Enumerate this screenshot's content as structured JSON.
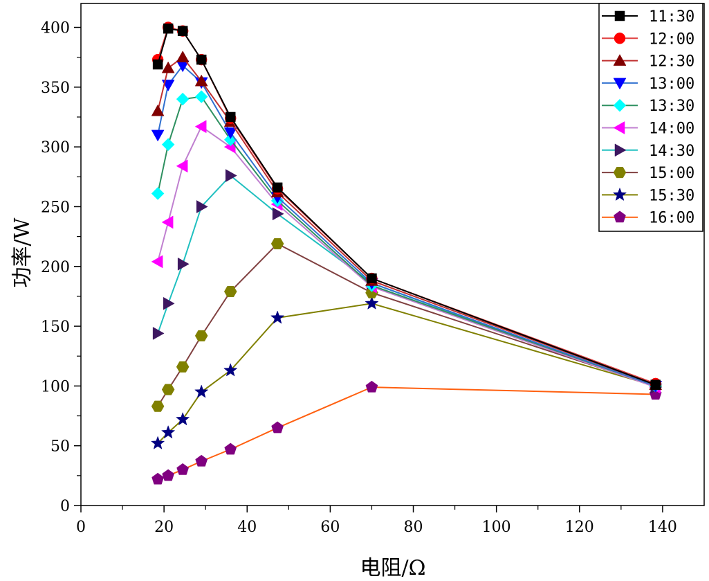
{
  "chart_data": {
    "type": "line",
    "xlabel": "电阻/Ω",
    "ylabel": "功率/W",
    "xlim": [
      0,
      150
    ],
    "ylim": [
      0,
      420
    ],
    "x_ticks": [
      0,
      20,
      40,
      60,
      80,
      100,
      120,
      140
    ],
    "y_ticks": [
      0,
      50,
      100,
      150,
      200,
      250,
      300,
      350,
      400
    ],
    "grid": false,
    "legend_position": "top-right",
    "x": [
      18.5,
      21,
      24.5,
      29,
      36,
      47.3,
      70,
      138.3
    ],
    "series": [
      {
        "name": "11:30",
        "marker": "square",
        "marker_color": "#000000",
        "line_color": "#000000",
        "values": [
          369,
          399,
          397,
          373,
          325,
          266,
          190,
          101
        ]
      },
      {
        "name": "12:00",
        "marker": "circle",
        "marker_color": "#ff0000",
        "line_color": "#e04040",
        "values": [
          373,
          400,
          397,
          373,
          324,
          265,
          190,
          102
        ]
      },
      {
        "name": "12:30",
        "marker": "triangle-up",
        "marker_color": "#800000",
        "line_color": "#c03030",
        "values": [
          330,
          366,
          375,
          355,
          321,
          262,
          188,
          101
        ]
      },
      {
        "name": "13:00",
        "marker": "triangle-down",
        "marker_color": "#0000ff",
        "line_color": "#3070d0",
        "values": [
          310,
          352,
          368,
          354,
          312,
          258,
          186,
          100
        ]
      },
      {
        "name": "13:30",
        "marker": "diamond",
        "marker_color": "#00ffff",
        "line_color": "#2e9060",
        "values": [
          261,
          302,
          340,
          342,
          306,
          255,
          184,
          100
        ]
      },
      {
        "name": "14:00",
        "marker": "triangle-left",
        "marker_color": "#ff00ff",
        "line_color": "#c080d0",
        "values": [
          204,
          237,
          284,
          317,
          300,
          252,
          183,
          99
        ]
      },
      {
        "name": "14:30",
        "marker": "triangle-right",
        "marker_color": "#3d1760",
        "line_color": "#20c0c0",
        "values": [
          144,
          169,
          202,
          250,
          276,
          244,
          186,
          99
        ]
      },
      {
        "name": "15:00",
        "marker": "hexagon",
        "marker_color": "#808000",
        "line_color": "#804040",
        "values": [
          83,
          97,
          116,
          142,
          179,
          219,
          178,
          100
        ]
      },
      {
        "name": "15:30",
        "marker": "star",
        "marker_color": "#000080",
        "line_color": "#808000",
        "values": [
          52,
          61,
          72,
          95,
          113,
          157,
          169,
          100
        ]
      },
      {
        "name": "16:00",
        "marker": "pentagon",
        "marker_color": "#800080",
        "line_color": "#ff6010",
        "values": [
          22,
          25,
          30,
          37,
          47,
          65,
          99,
          93
        ]
      }
    ]
  }
}
